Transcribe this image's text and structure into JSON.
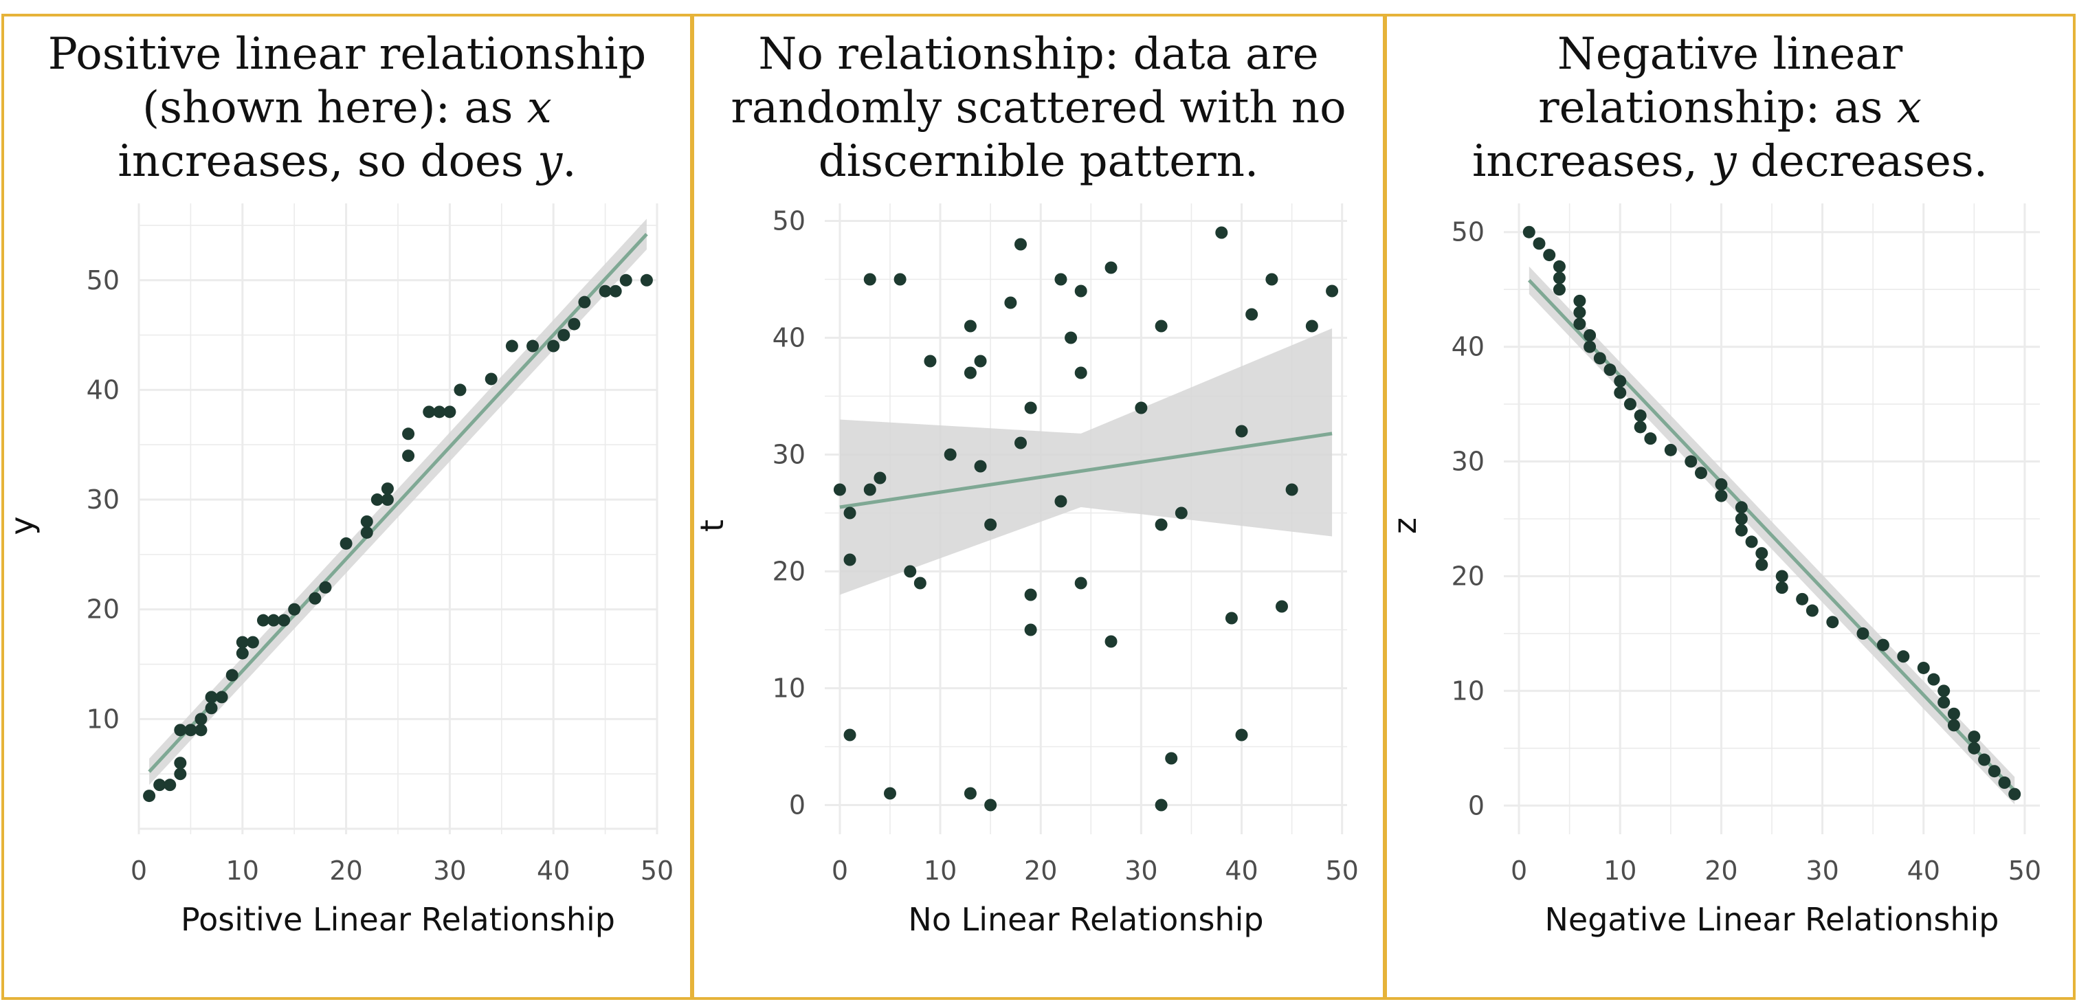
{
  "colors": {
    "border": "#e6b339",
    "point": "#1d3a30",
    "line": "#7fa894",
    "band": "#d6d6d6",
    "grid": "#ebebeb"
  },
  "chart_data": [
    {
      "type": "scatter",
      "title_lines": [
        [
          {
            "t": "Positive linear relationship"
          }
        ],
        [
          {
            "t": "(shown here): as "
          },
          {
            "t": "x",
            "i": true
          }
        ],
        [
          {
            "t": "increases, so does "
          },
          {
            "t": "y",
            "i": true
          },
          {
            "t": "."
          }
        ]
      ],
      "xlabel": "Positive Linear Relationship",
      "ylabel": "y",
      "xlim": [
        0,
        50
      ],
      "ylim": [
        -0.5,
        57
      ],
      "xticks": [
        0,
        10,
        20,
        30,
        40,
        50
      ],
      "yticks": [
        10,
        20,
        30,
        40,
        50
      ],
      "grid": true,
      "points": [
        [
          1,
          3
        ],
        [
          2,
          4
        ],
        [
          3,
          4
        ],
        [
          4,
          5
        ],
        [
          4,
          6
        ],
        [
          4,
          9
        ],
        [
          5,
          9
        ],
        [
          6,
          9
        ],
        [
          6,
          10
        ],
        [
          7,
          11
        ],
        [
          7,
          12
        ],
        [
          8,
          12
        ],
        [
          9,
          14
        ],
        [
          10,
          16
        ],
        [
          10,
          17
        ],
        [
          11,
          17
        ],
        [
          12,
          19
        ],
        [
          13,
          19
        ],
        [
          14,
          19
        ],
        [
          15,
          20
        ],
        [
          17,
          21
        ],
        [
          18,
          22
        ],
        [
          20,
          26
        ],
        [
          22,
          27
        ],
        [
          22,
          28
        ],
        [
          23,
          30
        ],
        [
          24,
          30
        ],
        [
          24,
          31
        ],
        [
          26,
          34
        ],
        [
          26,
          36
        ],
        [
          28,
          38
        ],
        [
          29,
          38
        ],
        [
          30,
          38
        ],
        [
          31,
          40
        ],
        [
          34,
          41
        ],
        [
          36,
          44
        ],
        [
          38,
          44
        ],
        [
          40,
          44
        ],
        [
          41,
          45
        ],
        [
          42,
          46
        ],
        [
          43,
          48
        ],
        [
          45,
          49
        ],
        [
          46,
          49
        ],
        [
          47,
          50
        ],
        [
          49,
          50
        ]
      ],
      "fit": {
        "x0": 1,
        "y0": 5.2,
        "x1": 49,
        "y1": 54.2
      },
      "band": {
        "lo0": 4.0,
        "hi0": 6.4,
        "lo1": 52.8,
        "hi1": 55.6
      }
    },
    {
      "type": "scatter",
      "title_lines": [
        [
          {
            "t": "No relationship: data are"
          }
        ],
        [
          {
            "t": "randomly scattered with no"
          }
        ],
        [
          {
            "t": "discernible pattern."
          }
        ]
      ],
      "xlabel": "No Linear Relationship",
      "ylabel": "t",
      "xlim": [
        -1.5,
        50.5
      ],
      "ylim": [
        -2.5,
        51.5
      ],
      "xticks": [
        0,
        10,
        20,
        30,
        40,
        50
      ],
      "yticks": [
        0,
        10,
        20,
        30,
        40,
        50
      ],
      "grid": true,
      "points": [
        [
          0,
          27
        ],
        [
          1,
          25
        ],
        [
          1,
          21
        ],
        [
          1,
          6
        ],
        [
          3,
          27
        ],
        [
          3,
          45
        ],
        [
          4,
          28
        ],
        [
          5,
          1
        ],
        [
          6,
          45
        ],
        [
          7,
          20
        ],
        [
          8,
          19
        ],
        [
          9,
          38
        ],
        [
          11,
          30
        ],
        [
          13,
          1
        ],
        [
          13,
          37
        ],
        [
          13,
          41
        ],
        [
          14,
          29
        ],
        [
          14,
          38
        ],
        [
          15,
          0
        ],
        [
          15,
          24
        ],
        [
          17,
          43
        ],
        [
          18,
          31
        ],
        [
          18,
          48
        ],
        [
          19,
          15
        ],
        [
          19,
          18
        ],
        [
          19,
          34
        ],
        [
          22,
          26
        ],
        [
          22,
          45
        ],
        [
          23,
          40
        ],
        [
          24,
          19
        ],
        [
          24,
          37
        ],
        [
          24,
          44
        ],
        [
          27,
          14
        ],
        [
          27,
          46
        ],
        [
          30,
          34
        ],
        [
          32,
          0
        ],
        [
          32,
          24
        ],
        [
          32,
          41
        ],
        [
          33,
          4
        ],
        [
          34,
          25
        ],
        [
          38,
          49
        ],
        [
          39,
          16
        ],
        [
          40,
          6
        ],
        [
          40,
          32
        ],
        [
          41,
          42
        ],
        [
          43,
          45
        ],
        [
          44,
          17
        ],
        [
          45,
          27
        ],
        [
          47,
          41
        ],
        [
          49,
          44
        ]
      ],
      "fit": {
        "x0": 0,
        "y0": 25.5,
        "x1": 49,
        "y1": 31.8
      },
      "band": {
        "lo0": 18.0,
        "hi0": 33.0,
        "lo1": 23.0,
        "hi1": 40.8
      },
      "band_mid": {
        "x": 24,
        "lo": 25.5,
        "hi": 31.8
      }
    },
    {
      "type": "scatter",
      "title_lines": [
        [
          {
            "t": "Negative linear"
          }
        ],
        [
          {
            "t": "relationship: as "
          },
          {
            "t": "x",
            "i": true
          }
        ],
        [
          {
            "t": "increases, "
          },
          {
            "t": "y",
            "i": true
          },
          {
            "t": " decreases."
          }
        ]
      ],
      "xlabel": "Negative Linear Relationship",
      "ylabel": "z",
      "xlim": [
        -1.5,
        51.5
      ],
      "ylim": [
        -2.5,
        52.5
      ],
      "xticks": [
        0,
        10,
        20,
        30,
        40,
        50
      ],
      "yticks": [
        0,
        10,
        20,
        30,
        40,
        50
      ],
      "grid": true,
      "points": [
        [
          1,
          50
        ],
        [
          2,
          49
        ],
        [
          3,
          48
        ],
        [
          4,
          47
        ],
        [
          4,
          46
        ],
        [
          4,
          45
        ],
        [
          6,
          44
        ],
        [
          6,
          43
        ],
        [
          6,
          42
        ],
        [
          7,
          41
        ],
        [
          7,
          40
        ],
        [
          8,
          39
        ],
        [
          9,
          38
        ],
        [
          10,
          37
        ],
        [
          10,
          36
        ],
        [
          11,
          35
        ],
        [
          12,
          34
        ],
        [
          12,
          33
        ],
        [
          13,
          32
        ],
        [
          15,
          31
        ],
        [
          17,
          30
        ],
        [
          18,
          29
        ],
        [
          20,
          28
        ],
        [
          20,
          27
        ],
        [
          22,
          26
        ],
        [
          22,
          25
        ],
        [
          22,
          24
        ],
        [
          23,
          23
        ],
        [
          24,
          22
        ],
        [
          24,
          21
        ],
        [
          26,
          20
        ],
        [
          26,
          19
        ],
        [
          28,
          18
        ],
        [
          29,
          17
        ],
        [
          31,
          16
        ],
        [
          34,
          15
        ],
        [
          36,
          14
        ],
        [
          38,
          13
        ],
        [
          40,
          12
        ],
        [
          41,
          11
        ],
        [
          42,
          10
        ],
        [
          42,
          9
        ],
        [
          43,
          8
        ],
        [
          43,
          7
        ],
        [
          45,
          6
        ],
        [
          45,
          5
        ],
        [
          46,
          4
        ],
        [
          47,
          3
        ],
        [
          48,
          2
        ],
        [
          49,
          1
        ]
      ],
      "fit": {
        "x0": 1,
        "y0": 45.8,
        "x1": 49,
        "y1": 1.3
      },
      "band": {
        "lo0": 44.6,
        "hi0": 47.0,
        "lo1": 0.1,
        "hi1": 2.5
      }
    }
  ]
}
